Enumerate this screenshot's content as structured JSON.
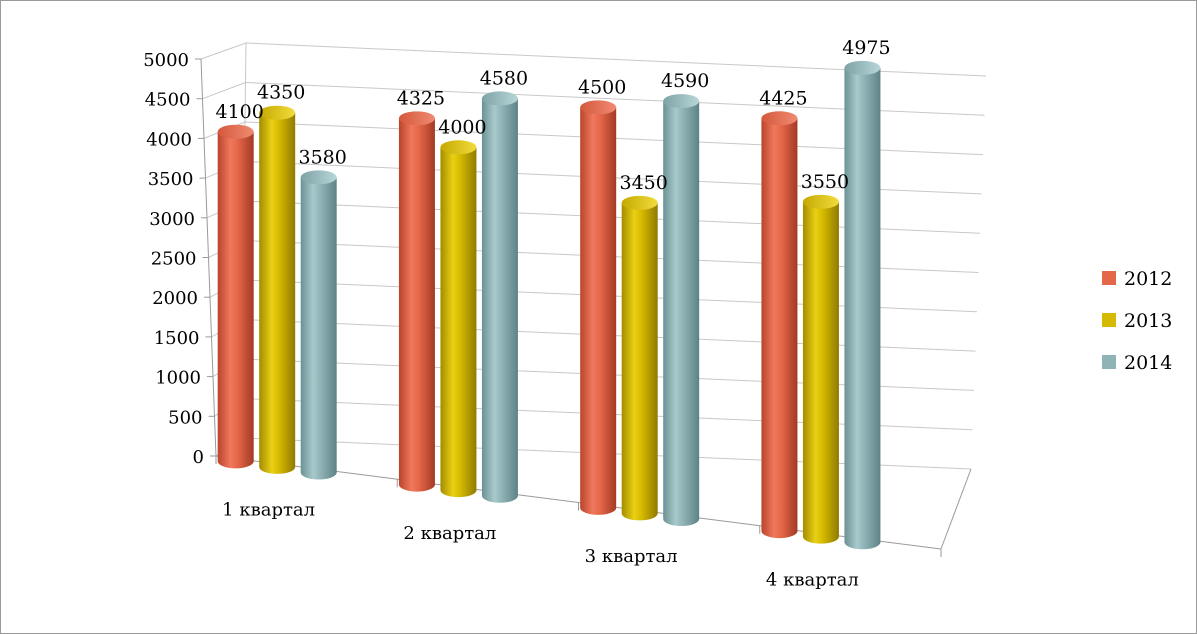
{
  "chart_data": {
    "type": "bar",
    "title": "",
    "xlabel": "",
    "ylabel": "",
    "categories": [
      "1 квартал",
      "2 квартал",
      "3 квартал",
      "4 квартал"
    ],
    "series": [
      {
        "name": "2012",
        "values": [
          4100,
          4325,
          4500,
          4425
        ]
      },
      {
        "name": "2013",
        "values": [
          4350,
          4000,
          3450,
          3550
        ]
      },
      {
        "name": "2014",
        "values": [
          3580,
          4580,
          4590,
          4975
        ]
      }
    ],
    "y_ticks": [
      "0",
      "500",
      "1000",
      "1500",
      "2000",
      "2500",
      "3000",
      "3500",
      "4000",
      "4500",
      "5000"
    ],
    "ylim": [
      0,
      5000
    ],
    "grid": true,
    "legend_position": "right",
    "colors": [
      "#e5674a",
      "#d6ba00",
      "#8fb3b6"
    ]
  }
}
